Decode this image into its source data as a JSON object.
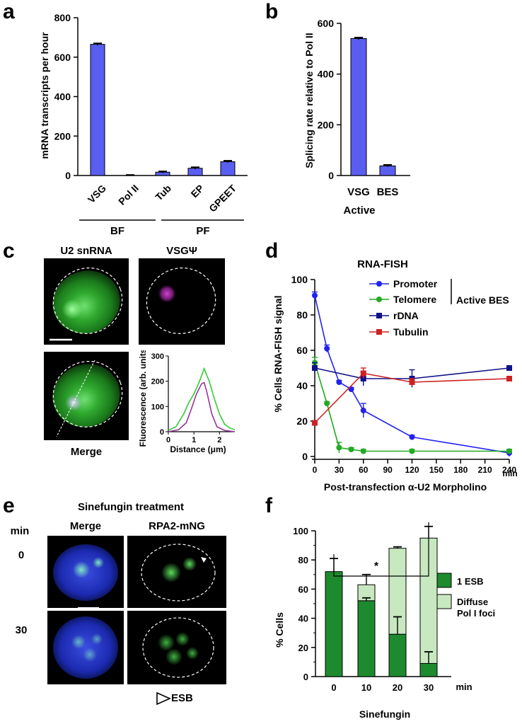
{
  "panels": {
    "a": {
      "letter": "a",
      "ylabel": "mRNA transcripts per hour",
      "yticks": [
        "0",
        "200",
        "400",
        "600",
        "800"
      ],
      "ylim": [
        0,
        800
      ],
      "categories": [
        "VSG",
        "Pol II",
        "Tub",
        "EP",
        "GPEET"
      ],
      "values": [
        665,
        0,
        17,
        37,
        70
      ],
      "errors": [
        5,
        3,
        4,
        5,
        5
      ],
      "groups": [
        {
          "label": "BF"
        },
        {
          "label": "PF"
        }
      ]
    },
    "b": {
      "letter": "b",
      "ylabel": "Splicing rate relative to Pol II",
      "yticks": [
        "0",
        "200",
        "400",
        "600"
      ],
      "ylim": [
        0,
        600
      ],
      "categories": [
        "VSG",
        "BES"
      ],
      "values": [
        540,
        38
      ],
      "errors": [
        4,
        4
      ],
      "xlabel": "Active"
    },
    "c": {
      "letter": "c",
      "titles": {
        "u2": "U2 snRNA",
        "vsg": "VSGΨ",
        "merge": "Merge"
      },
      "profile": {
        "ylabel": "Fluorescence (arb. units)",
        "xlabel": "Distance (μm)",
        "yticks": [
          "0",
          "100",
          "200",
          "300"
        ],
        "xticks": [
          "0",
          "1",
          "2"
        ],
        "ylim": [
          0,
          300
        ],
        "xlim": [
          0,
          2.6
        ],
        "series": [
          {
            "color": "#33cc33",
            "x": [
              0,
              0.3,
              0.6,
              0.8,
              1.0,
              1.2,
              1.4,
              1.6,
              1.8,
              2.0,
              2.2,
              2.4,
              2.6
            ],
            "y": [
              5,
              20,
              70,
              115,
              150,
              195,
              250,
              200,
              130,
              70,
              30,
              15,
              8
            ]
          },
          {
            "color": "#993399",
            "x": [
              0,
              0.4,
              0.7,
              0.9,
              1.1,
              1.3,
              1.4,
              1.5,
              1.7,
              1.9,
              2.2,
              2.6
            ],
            "y": [
              0,
              8,
              35,
              90,
              150,
              190,
              195,
              160,
              70,
              20,
              5,
              0
            ]
          }
        ]
      }
    },
    "d": {
      "letter": "d",
      "title": "RNA-FISH",
      "ylabel": "% Cells RNA-FISH signal",
      "xlabel": "Post-transfection α-U2 Morpholino",
      "xunit": "min",
      "yticks": [
        "0",
        "20",
        "40",
        "60",
        "80",
        "100"
      ],
      "xticks": [
        "0",
        "30",
        "60",
        "90",
        "120",
        "150",
        "180",
        "210",
        "240"
      ],
      "xlim": [
        0,
        240
      ],
      "ylim": [
        0,
        100
      ],
      "bracket_label": "Active BES",
      "series": [
        {
          "name": "Promoter",
          "color": "#2222ee",
          "marker": "circle",
          "x": [
            0,
            15,
            30,
            45,
            60,
            120,
            240
          ],
          "y": [
            91,
            61,
            42,
            38,
            26,
            11,
            2
          ],
          "err": [
            2,
            2,
            1,
            1,
            4,
            1,
            2
          ]
        },
        {
          "name": "Telomere",
          "color": "#22aa22",
          "marker": "circle",
          "x": [
            0,
            15,
            30,
            45,
            60,
            120,
            240
          ],
          "y": [
            53,
            30,
            5,
            4,
            3,
            3,
            3
          ],
          "err": [
            3,
            1,
            3,
            1,
            1,
            1,
            1
          ]
        },
        {
          "name": "rDNA",
          "color": "#111188",
          "marker": "square",
          "x": [
            0,
            60,
            120,
            240
          ],
          "y": [
            50,
            44,
            44,
            50
          ],
          "err": [
            3,
            4,
            5,
            1
          ]
        },
        {
          "name": "Tubulin",
          "color": "#cc2222",
          "marker": "square",
          "x": [
            0,
            60,
            120,
            240
          ],
          "y": [
            19,
            47,
            42,
            44
          ],
          "err": [
            1,
            3,
            2,
            1
          ]
        }
      ]
    },
    "e": {
      "letter": "e",
      "title": "Sinefungin treatment",
      "min_label": "min",
      "col_titles": {
        "merge": "Merge",
        "rpa": "RPA2-mNG"
      },
      "rows": [
        "0",
        "30"
      ],
      "legend": "ESB"
    },
    "f": {
      "letter": "f",
      "ylabel": "% Cells",
      "xlabel": "Sinefungin",
      "xunit": "min",
      "yticks": [
        "0",
        "20",
        "40",
        "60",
        "80",
        "100"
      ],
      "ylim": [
        0,
        100
      ],
      "categories": [
        "0",
        "10",
        "20",
        "30"
      ],
      "significance": "*",
      "series": [
        {
          "name": "1 ESB",
          "color": "#1e8a2e",
          "values": [
            72,
            52,
            29,
            9
          ],
          "errors": [
            9,
            2,
            12,
            8
          ]
        },
        {
          "name": "Diffuse Pol I foci",
          "color": "#c8e8c0",
          "values": [
            0,
            11,
            59,
            86
          ],
          "errors": [
            0,
            7,
            1,
            8
          ]
        }
      ],
      "legend_second_line": "Pol I foci",
      "legend_first_line": "Diffuse"
    }
  }
}
